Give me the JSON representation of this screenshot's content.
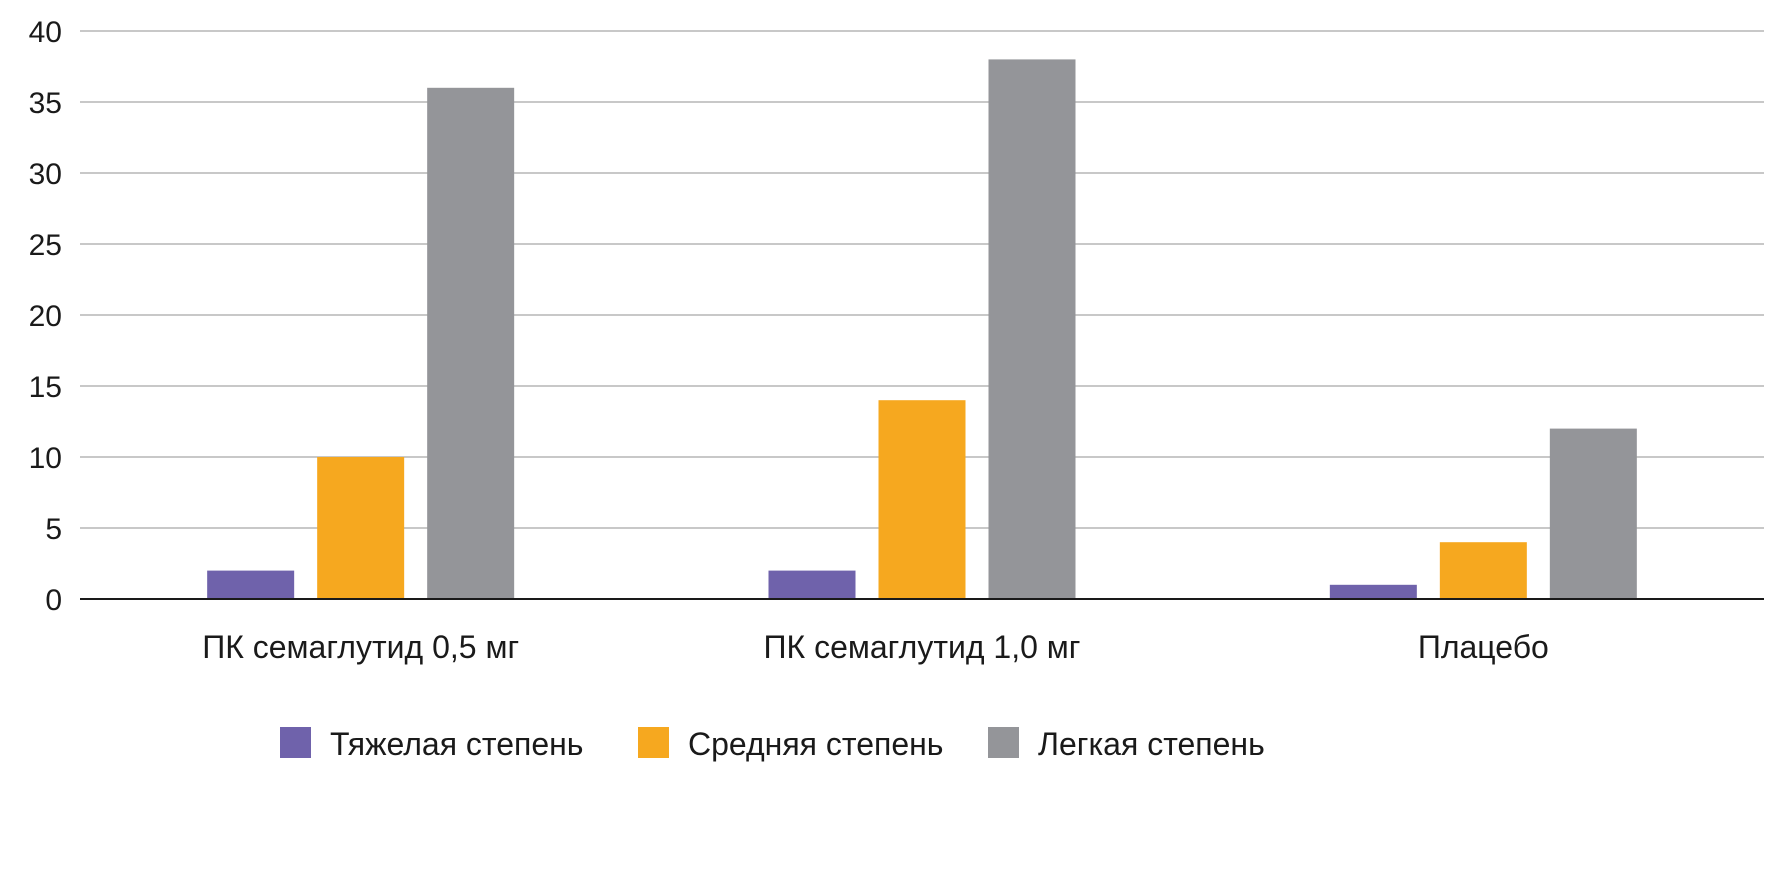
{
  "chart_data": {
    "type": "bar",
    "categories": [
      "ПК семаглутид 0,5 мг",
      "ПК семаглутид 1,0 мг",
      "Плацебо"
    ],
    "series": [
      {
        "name": "Тяжелая степень",
        "values": [
          2,
          2,
          1
        ],
        "color": "#6f62ab"
      },
      {
        "name": "Средняя степень",
        "values": [
          10,
          14,
          4
        ],
        "color": "#f6a81f"
      },
      {
        "name": "Легкая степень",
        "values": [
          36,
          38,
          12
        ],
        "color": "#949599"
      }
    ],
    "yticks": [
      "0",
      "5",
      "10",
      "15",
      "20",
      "25",
      "30",
      "35",
      "40"
    ],
    "ylim": [
      0,
      40
    ],
    "grid": true,
    "legend_position": "bottom",
    "title": "",
    "xlabel": "",
    "ylabel": ""
  }
}
